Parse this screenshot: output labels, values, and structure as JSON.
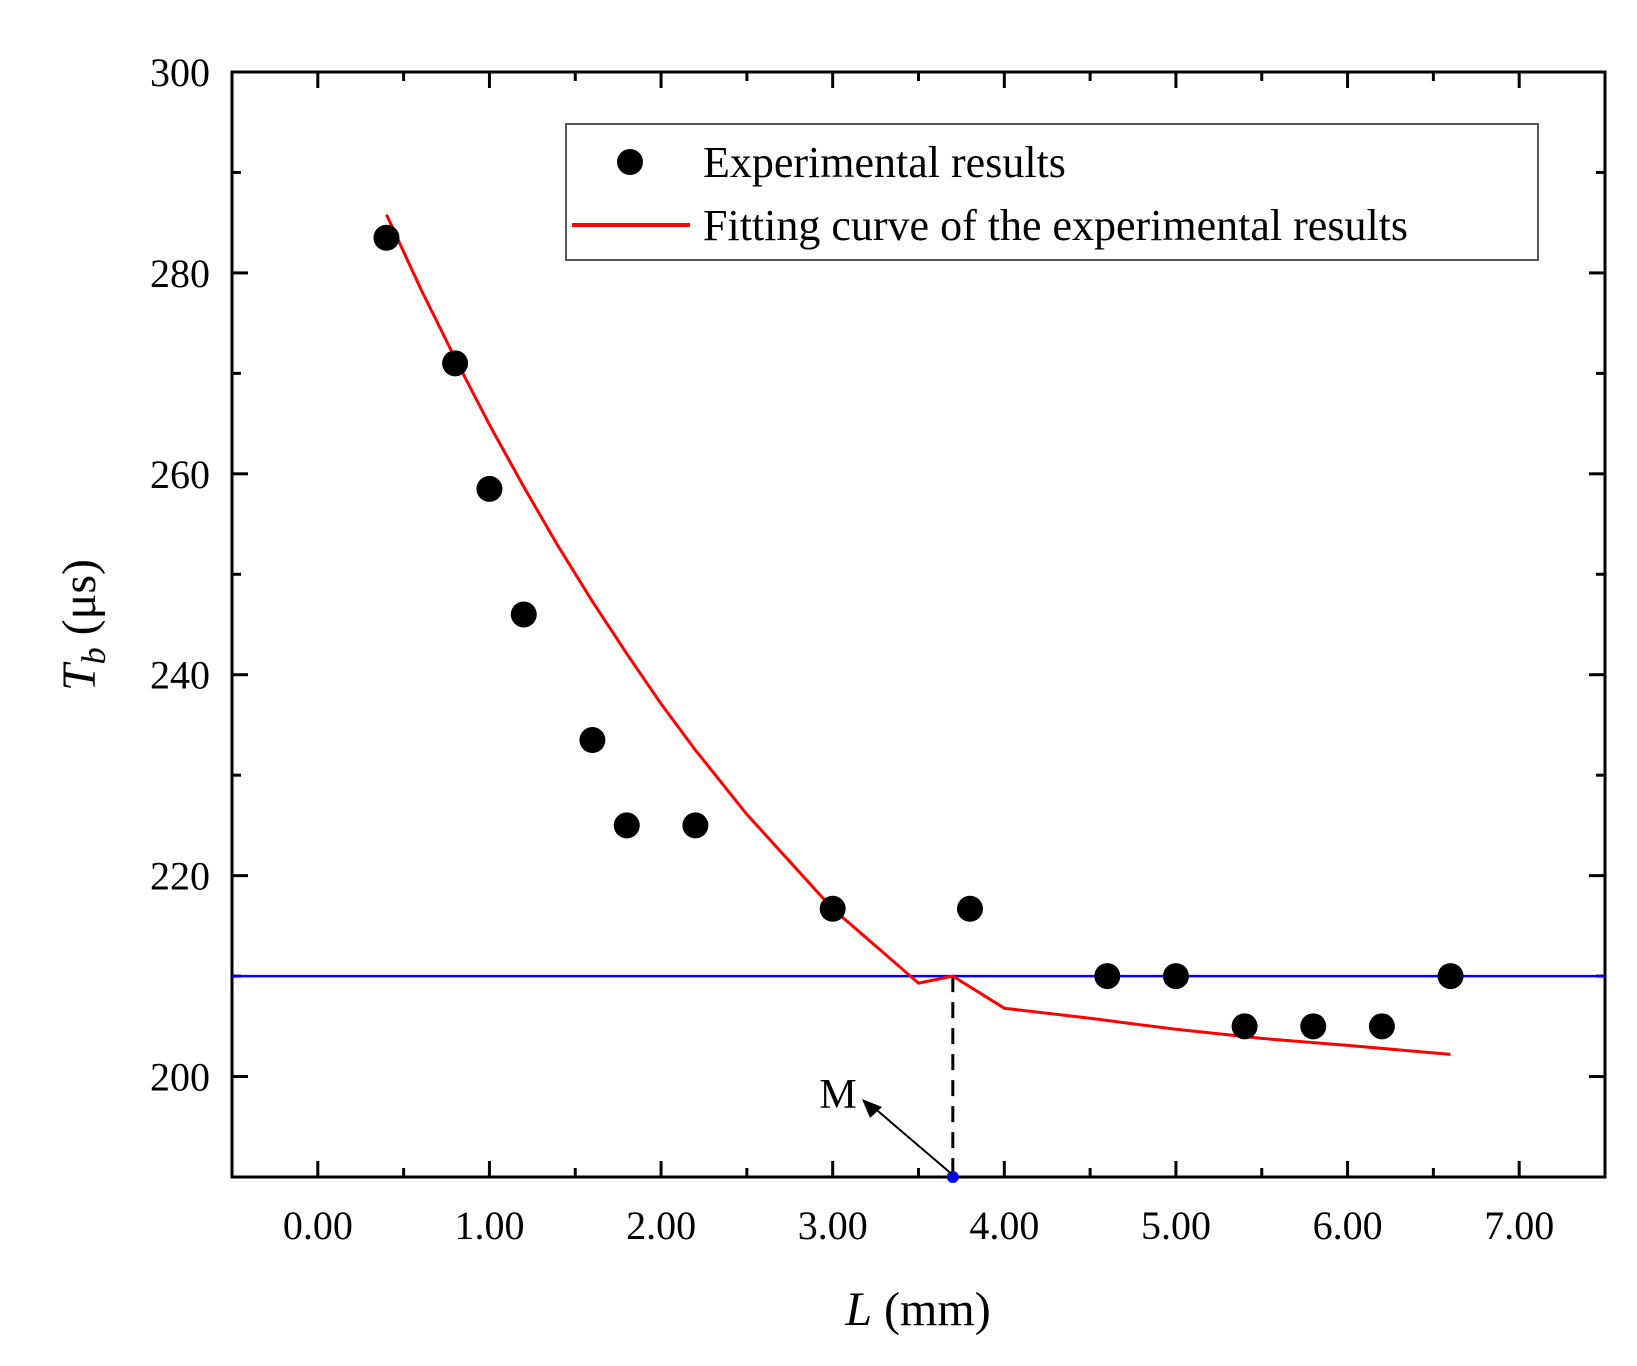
{
  "chart_data": {
    "type": "scatter",
    "xlabel": {
      "var": "L",
      "unit": " (mm)"
    },
    "ylabel": {
      "var": "T",
      "sub": "b",
      "unit": " (μs)"
    },
    "xlim": [
      -0.5,
      7.5
    ],
    "ylim": [
      190,
      300
    ],
    "x_ticks": [
      0,
      1,
      2,
      3,
      4,
      5,
      6,
      7
    ],
    "x_tick_labels": [
      "0.00",
      "1.00",
      "2.00",
      "3.00",
      "4.00",
      "5.00",
      "6.00",
      "7.00"
    ],
    "y_ticks": [
      200,
      220,
      240,
      260,
      280,
      300
    ],
    "y_tick_labels": [
      "200",
      "220",
      "240",
      "260",
      "280",
      "300"
    ],
    "legend_position": "top-right",
    "series": [
      {
        "name": "Experimental results",
        "kind": "scatter",
        "color": "#000000",
        "x": [
          0.4,
          0.8,
          1.0,
          1.2,
          1.6,
          1.8,
          2.2,
          3.0,
          3.8,
          4.6,
          5.0,
          5.4,
          5.8,
          6.2,
          6.6
        ],
        "y": [
          283.5,
          271,
          258.5,
          246,
          233.5,
          225,
          225,
          216.7,
          216.7,
          210,
          210,
          205,
          205,
          205,
          210
        ]
      },
      {
        "name": "Fitting curve of the experimental results",
        "kind": "line",
        "color": "#ff0000",
        "x": [
          0.4,
          0.6,
          0.8,
          1.0,
          1.2,
          1.4,
          1.6,
          1.8,
          2.0,
          2.2,
          2.5,
          3.0,
          3.5,
          3.7,
          4.0,
          4.5,
          5.0,
          5.5,
          6.0,
          6.6
        ],
        "y": [
          285.8,
          278.4,
          271.5,
          264.9,
          258.7,
          252.8,
          247.3,
          242.1,
          237.1,
          232.5,
          226.1,
          216.7,
          209.3,
          210,
          206.8,
          205.8,
          204.7,
          203.8,
          203.1,
          202.2
        ]
      }
    ],
    "reference_line": {
      "y": 210,
      "color": "#0000ff"
    },
    "marker": {
      "label": "M",
      "x": 3.7,
      "color": "#0000ff"
    }
  }
}
